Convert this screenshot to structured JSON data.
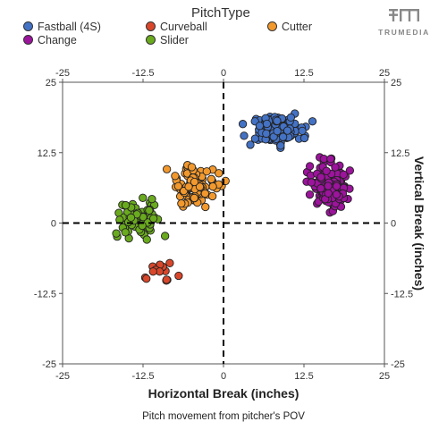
{
  "legend": {
    "title": "PitchType",
    "items": [
      {
        "label": "Fastball (4S)",
        "color": "#4472c4"
      },
      {
        "label": "Curveball",
        "color": "#d9472b"
      },
      {
        "label": "Cutter",
        "color": "#f2992e"
      },
      {
        "label": "Change",
        "color": "#9c139c"
      },
      {
        "label": "Slider",
        "color": "#6aaa1e"
      }
    ]
  },
  "logo": {
    "text": "TRUMEDIA",
    "icon": "trumedia-logo-icon"
  },
  "caption": "Pitch movement from pitcher's POV",
  "chart_data": {
    "type": "scatter",
    "title": "",
    "xlabel": "Horizontal Break (inches)",
    "ylabel": "Vertical Break (inches)",
    "xlim": [
      -25,
      25
    ],
    "ylim": [
      -25,
      25
    ],
    "xticks": [
      "-25",
      "-12.5",
      "0",
      "12.5",
      "25"
    ],
    "yticks": [
      "25",
      "12.5",
      "0",
      "-12.5",
      "-25"
    ],
    "reference_lines": [
      "x=0 dashed",
      "y=0 dashed"
    ],
    "legend_position": "top",
    "series": [
      {
        "name": "Fastball (4S)",
        "color": "#4472c4",
        "count": 150,
        "center": [
          8,
          16.5
        ],
        "spread": [
          3.6,
          2.2
        ],
        "x_range": [
          3,
          14.5
        ],
        "y_range": [
          12,
          21
        ]
      },
      {
        "name": "Change",
        "color": "#9c139c",
        "count": 160,
        "center": [
          16.5,
          6.5
        ],
        "spread": [
          2.6,
          3.4
        ],
        "x_range": [
          12.5,
          21
        ],
        "y_range": [
          -1,
          12
        ]
      },
      {
        "name": "Cutter",
        "color": "#f2992e",
        "count": 110,
        "center": [
          -4.5,
          6.5
        ],
        "spread": [
          3.0,
          3.3
        ],
        "x_range": [
          -10,
          1
        ],
        "y_range": [
          0,
          12
        ]
      },
      {
        "name": "Slider",
        "color": "#6aaa1e",
        "count": 80,
        "center": [
          -13,
          0.8
        ],
        "spread": [
          3.0,
          2.8
        ],
        "x_range": [
          -17.5,
          -6
        ],
        "y_range": [
          -4,
          5.5
        ]
      },
      {
        "name": "Curveball",
        "color": "#d9472b",
        "count": 14,
        "center": [
          -9.5,
          -8.5
        ],
        "spread": [
          2.5,
          1.8
        ],
        "x_range": [
          -12.5,
          -5
        ],
        "y_range": [
          -12,
          -4
        ]
      }
    ]
  }
}
